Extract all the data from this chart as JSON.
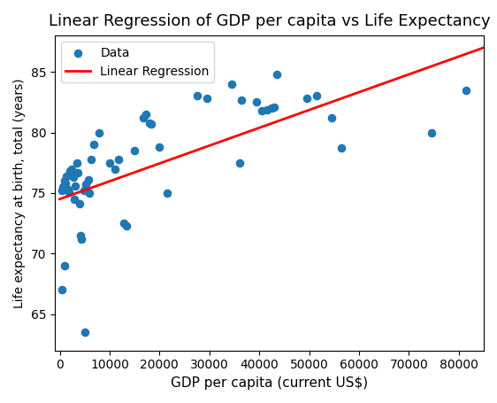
{
  "title": "Linear Regression of GDP per capita vs Life Expectancy",
  "xlabel": "GDP per capita (current US$)",
  "ylabel": "Life expectancy at birth, total (years)",
  "scatter_color": "#1f77b4",
  "regression_color": "red",
  "marker_size": 35,
  "xlim": [
    -1000,
    85000
  ],
  "ylim": [
    62,
    88
  ],
  "xticks": [
    0,
    10000,
    20000,
    30000,
    40000,
    50000,
    60000,
    70000,
    80000
  ],
  "yticks": [
    65,
    70,
    75,
    80,
    85
  ],
  "legend_loc": "upper left",
  "reg_x0": 0,
  "reg_y0": 74.5,
  "reg_x1": 85000,
  "reg_y1": 87.0,
  "data_points": [
    [
      400,
      75.2
    ],
    [
      700,
      75.5
    ],
    [
      900,
      76.0
    ],
    [
      1100,
      75.8
    ],
    [
      1400,
      76.4
    ],
    [
      1700,
      75.3
    ],
    [
      1900,
      75.1
    ],
    [
      2100,
      76.8
    ],
    [
      2400,
      77.0
    ],
    [
      2700,
      76.3
    ],
    [
      2900,
      74.5
    ],
    [
      3100,
      75.6
    ],
    [
      3400,
      77.5
    ],
    [
      3700,
      76.7
    ],
    [
      3900,
      74.1
    ],
    [
      4100,
      71.5
    ],
    [
      4400,
      71.2
    ],
    [
      4900,
      75.2
    ],
    [
      5300,
      75.7
    ],
    [
      5700,
      76.1
    ],
    [
      5900,
      75.0
    ],
    [
      6300,
      77.8
    ],
    [
      6900,
      79.0
    ],
    [
      900,
      69.0
    ],
    [
      400,
      67.0
    ],
    [
      7800,
      80.0
    ],
    [
      10000,
      77.5
    ],
    [
      11000,
      77.0
    ],
    [
      11800,
      77.8
    ],
    [
      12800,
      72.5
    ],
    [
      13300,
      72.3
    ],
    [
      15000,
      78.5
    ],
    [
      16800,
      81.2
    ],
    [
      17300,
      81.5
    ],
    [
      17900,
      80.8
    ],
    [
      18400,
      80.7
    ],
    [
      20000,
      78.8
    ],
    [
      21500,
      75.0
    ],
    [
      5000,
      63.5
    ],
    [
      27500,
      83.0
    ],
    [
      29500,
      82.8
    ],
    [
      34500,
      84.0
    ],
    [
      36500,
      82.7
    ],
    [
      39500,
      82.5
    ],
    [
      40500,
      81.8
    ],
    [
      41500,
      81.9
    ],
    [
      42500,
      82.0
    ],
    [
      43000,
      82.1
    ],
    [
      43500,
      84.8
    ],
    [
      36000,
      77.5
    ],
    [
      49500,
      82.8
    ],
    [
      51500,
      83.0
    ],
    [
      54500,
      81.2
    ],
    [
      56500,
      78.7
    ],
    [
      74500,
      80.0
    ],
    [
      81500,
      83.5
    ]
  ]
}
